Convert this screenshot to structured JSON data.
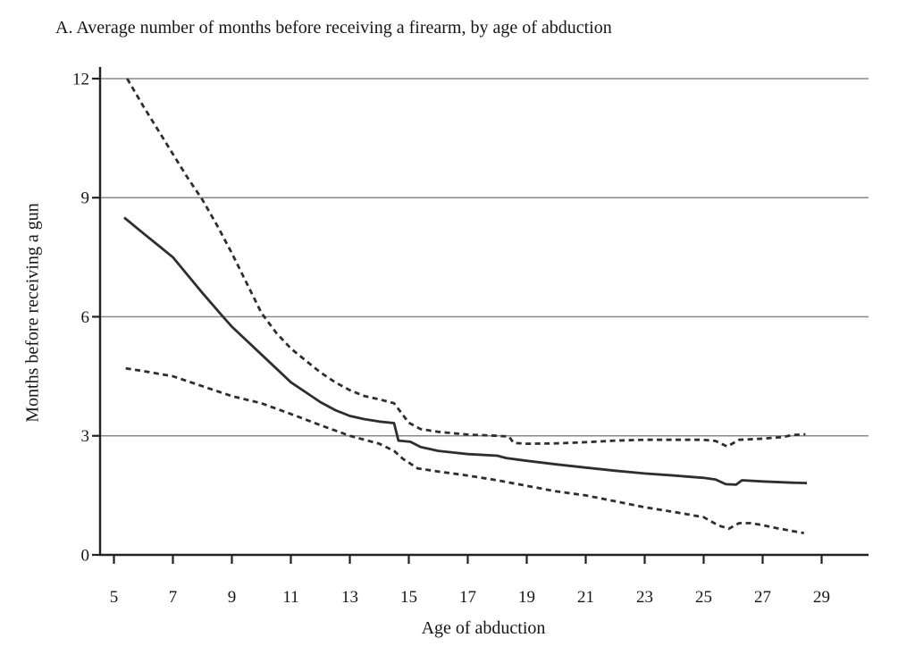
{
  "chart_data": {
    "type": "line",
    "title": "A. Average number of months before receiving a firearm, by age of abduction",
    "xlabel": "Age of abduction",
    "ylabel": "Months before receiving a gun",
    "xlim": [
      4.5,
      30.6
    ],
    "ylim": [
      0,
      12
    ],
    "x_ticks": [
      5,
      7,
      9,
      11,
      13,
      15,
      17,
      19,
      21,
      23,
      25,
      27,
      29
    ],
    "y_ticks": [
      0,
      3,
      6,
      9,
      12
    ],
    "grid": "horizontal-only",
    "legend": "none",
    "colors": {
      "line": "#2e2e2e",
      "axis": "#222222",
      "grid": "#8a8a8a",
      "text": "#161616"
    },
    "series": [
      {
        "name": "mean",
        "style": "solid",
        "points": [
          [
            5.35,
            8.5
          ],
          [
            6,
            8.1
          ],
          [
            6.5,
            7.8
          ],
          [
            7,
            7.5
          ],
          [
            7.5,
            7.05
          ],
          [
            8,
            6.6
          ],
          [
            8.7,
            6.0
          ],
          [
            9,
            5.75
          ],
          [
            9.5,
            5.4
          ],
          [
            10,
            5.05
          ],
          [
            10.5,
            4.7
          ],
          [
            11,
            4.35
          ],
          [
            11.5,
            4.1
          ],
          [
            12,
            3.85
          ],
          [
            12.5,
            3.65
          ],
          [
            13,
            3.5
          ],
          [
            13.5,
            3.42
          ],
          [
            14,
            3.36
          ],
          [
            14.5,
            3.32
          ],
          [
            14.65,
            2.88
          ],
          [
            15.05,
            2.85
          ],
          [
            15.4,
            2.72
          ],
          [
            16,
            2.62
          ],
          [
            17,
            2.54
          ],
          [
            18,
            2.5
          ],
          [
            18.3,
            2.44
          ],
          [
            19,
            2.37
          ],
          [
            20,
            2.28
          ],
          [
            21,
            2.2
          ],
          [
            22,
            2.12
          ],
          [
            23,
            2.05
          ],
          [
            24,
            2.0
          ],
          [
            25,
            1.94
          ],
          [
            25.4,
            1.9
          ],
          [
            25.75,
            1.78
          ],
          [
            26.1,
            1.77
          ],
          [
            26.3,
            1.88
          ],
          [
            27,
            1.85
          ],
          [
            28,
            1.82
          ],
          [
            28.5,
            1.81
          ]
        ]
      },
      {
        "name": "upper_confidence_band",
        "style": "dashed",
        "points": [
          [
            5.45,
            12.0
          ],
          [
            6,
            11.3
          ],
          [
            6.5,
            10.7
          ],
          [
            7,
            10.1
          ],
          [
            7.5,
            9.5
          ],
          [
            8,
            8.95
          ],
          [
            8.5,
            8.3
          ],
          [
            9,
            7.6
          ],
          [
            9.5,
            6.85
          ],
          [
            10,
            6.1
          ],
          [
            10.5,
            5.6
          ],
          [
            11,
            5.2
          ],
          [
            11.5,
            4.9
          ],
          [
            12,
            4.6
          ],
          [
            12.5,
            4.35
          ],
          [
            13,
            4.15
          ],
          [
            13.5,
            4.0
          ],
          [
            14,
            3.92
          ],
          [
            14.5,
            3.82
          ],
          [
            15,
            3.33
          ],
          [
            15.4,
            3.17
          ],
          [
            16,
            3.1
          ],
          [
            17,
            3.03
          ],
          [
            18,
            3.0
          ],
          [
            18.4,
            2.98
          ],
          [
            18.55,
            2.82
          ],
          [
            19,
            2.8
          ],
          [
            20,
            2.81
          ],
          [
            21,
            2.84
          ],
          [
            22,
            2.88
          ],
          [
            23,
            2.9
          ],
          [
            24,
            2.9
          ],
          [
            25,
            2.9
          ],
          [
            25.4,
            2.87
          ],
          [
            25.8,
            2.73
          ],
          [
            26.2,
            2.9
          ],
          [
            27,
            2.93
          ],
          [
            27.7,
            2.97
          ],
          [
            28,
            3.02
          ],
          [
            28.45,
            3.04
          ]
        ]
      },
      {
        "name": "lower_confidence_band",
        "style": "dashed",
        "points": [
          [
            5.4,
            4.7
          ],
          [
            6,
            4.63
          ],
          [
            7,
            4.5
          ],
          [
            8,
            4.25
          ],
          [
            9,
            4.0
          ],
          [
            10,
            3.82
          ],
          [
            11,
            3.55
          ],
          [
            12,
            3.27
          ],
          [
            13,
            3.0
          ],
          [
            13.5,
            2.9
          ],
          [
            14,
            2.8
          ],
          [
            14.5,
            2.62
          ],
          [
            14.8,
            2.42
          ],
          [
            15.3,
            2.18
          ],
          [
            16,
            2.1
          ],
          [
            17,
            2.0
          ],
          [
            18,
            1.88
          ],
          [
            19,
            1.74
          ],
          [
            20,
            1.6
          ],
          [
            21,
            1.5
          ],
          [
            22,
            1.35
          ],
          [
            23,
            1.2
          ],
          [
            24,
            1.08
          ],
          [
            25,
            0.95
          ],
          [
            25.5,
            0.74
          ],
          [
            25.85,
            0.66
          ],
          [
            26.2,
            0.8
          ],
          [
            26.6,
            0.8
          ],
          [
            27,
            0.75
          ],
          [
            27.5,
            0.67
          ],
          [
            28,
            0.6
          ],
          [
            28.4,
            0.55
          ]
        ]
      }
    ]
  }
}
